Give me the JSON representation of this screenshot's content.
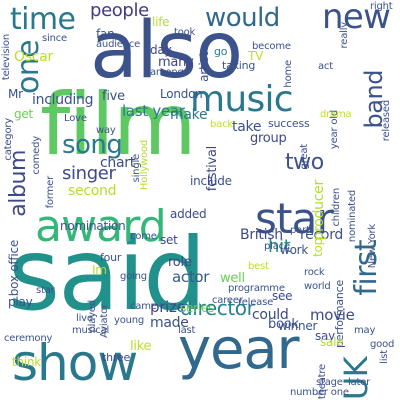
{
  "words": [
    {
      "text": "said",
      "color": "#21918c"
    },
    {
      "text": "film",
      "color": "#5ec962"
    },
    {
      "text": "also",
      "color": "#3b528b"
    },
    {
      "text": "year",
      "color": "#31688e"
    },
    {
      "text": "show",
      "color": "#2a788e"
    },
    {
      "text": "award",
      "color": "#35b779"
    },
    {
      "text": "star",
      "color": "#3b528b"
    },
    {
      "text": "music",
      "color": "#2a788e"
    },
    {
      "text": "new",
      "color": "#3b528b"
    },
    {
      "text": "time",
      "color": "#2a788e"
    },
    {
      "text": "UK",
      "color": "#2a788e"
    },
    {
      "text": "first",
      "color": "#31688e"
    },
    {
      "text": "one",
      "color": "#2a788e"
    },
    {
      "text": "would",
      "color": "#31688e"
    },
    {
      "text": "song",
      "color": "#2a788e"
    },
    {
      "text": "band",
      "color": "#3b528b"
    },
    {
      "text": "album",
      "color": "#3e4989"
    },
    {
      "text": "two",
      "color": "#3b528b"
    },
    {
      "text": "people",
      "color": "#443983"
    },
    {
      "text": "director",
      "color": "#26828e"
    },
    {
      "text": "singer",
      "color": "#3e4989"
    },
    {
      "text": "hit",
      "color": "#21918c"
    },
    {
      "text": "including",
      "color": "#3b528b"
    },
    {
      "text": "make",
      "color": "#2a788e"
    },
    {
      "text": "last year",
      "color": "#2a788e"
    },
    {
      "text": "chart",
      "color": "#3e4989"
    },
    {
      "text": "actor",
      "color": "#38588c"
    },
    {
      "text": "movie",
      "color": "#3e4989"
    },
    {
      "text": "record",
      "color": "#3b528b"
    },
    {
      "text": "British",
      "color": "#3e4989"
    },
    {
      "text": "prize",
      "color": "#3e4989"
    },
    {
      "text": "made",
      "color": "#3b528b"
    },
    {
      "text": "could",
      "color": "#3e4989"
    },
    {
      "text": "London",
      "color": "#3b528b"
    },
    {
      "text": "role",
      "color": "#3e4989"
    },
    {
      "text": "work",
      "color": "#3b528b"
    },
    {
      "text": "book",
      "color": "#3b528b"
    },
    {
      "text": "set",
      "color": "#3e4989"
    },
    {
      "text": "take",
      "color": "#3b528b"
    },
    {
      "text": "group",
      "color": "#3e4989"
    },
    {
      "text": "five",
      "color": "#3b528b"
    },
    {
      "text": "many",
      "color": "#3e4989"
    },
    {
      "text": "Oscar",
      "color": "#bddf26"
    },
    {
      "text": "second",
      "color": "#b5de2b"
    },
    {
      "text": "include",
      "color": "#3b528b"
    },
    {
      "text": "added",
      "color": "#3e4989"
    },
    {
      "text": "producer",
      "color": "#b5de2b"
    },
    {
      "text": "performance",
      "color": "#3b528b"
    },
    {
      "text": "top",
      "color": "#b5de2b"
    },
    {
      "text": "series",
      "color": "#6ece58"
    },
    {
      "text": "well",
      "color": "#6ece58"
    },
    {
      "text": "play",
      "color": "#3b528b"
    },
    {
      "text": "like",
      "color": "#bddf26"
    },
    {
      "text": "winner",
      "color": "#3b528b"
    },
    {
      "text": "three",
      "color": "#3e4989"
    },
    {
      "text": "say",
      "color": "#3e4989"
    },
    {
      "text": "think",
      "color": "#bddf26"
    },
    {
      "text": "nomination",
      "color": "#3b528b"
    },
    {
      "text": "box office",
      "color": "#3b528b"
    },
    {
      "text": "festival",
      "color": "#3e4989"
    },
    {
      "text": "four",
      "color": "#3b528b"
    },
    {
      "text": "get",
      "color": "#6ece58"
    },
    {
      "text": "life",
      "color": "#b5de2b"
    },
    {
      "text": "day",
      "color": "#3e4989"
    },
    {
      "text": "artist",
      "color": "#3b528b"
    },
    {
      "text": "see",
      "color": "#3e4989"
    },
    {
      "text": "sale",
      "color": "#b5de2b"
    },
    {
      "text": "go",
      "color": "#2a788e"
    },
    {
      "text": "TV",
      "color": "#bddf26"
    },
    {
      "text": "Mr",
      "color": "#3b528b"
    },
    {
      "text": "Im",
      "color": "#b5de2b"
    },
    {
      "text": "fan",
      "color": "#3b528b"
    },
    {
      "text": "audience",
      "color": "#3b528b"
    },
    {
      "text": "among",
      "color": "#3b528b"
    },
    {
      "text": "taking",
      "color": "#3b528b"
    },
    {
      "text": "took",
      "color": "#3b528b"
    },
    {
      "text": "become",
      "color": "#3b528b"
    },
    {
      "text": "success",
      "color": "#3b528b"
    },
    {
      "text": "home",
      "color": "#3b528b"
    },
    {
      "text": "act",
      "color": "#3b528b"
    },
    {
      "text": "year old",
      "color": "#3b528b"
    },
    {
      "text": "drama",
      "color": "#bddf26"
    },
    {
      "text": "really",
      "color": "#3b528b"
    },
    {
      "text": "released",
      "color": "#3b528b"
    },
    {
      "text": "right",
      "color": "#3b528b"
    },
    {
      "text": "great",
      "color": "#3b528b"
    },
    {
      "text": "children",
      "color": "#3b528b"
    },
    {
      "text": "nominated",
      "color": "#3b528b"
    },
    {
      "text": "part",
      "color": "#3b528b"
    },
    {
      "text": "rock",
      "color": "#3b528b"
    },
    {
      "text": "single",
      "color": "#3b528b"
    },
    {
      "text": "Hollywood",
      "color": "#b5de2b"
    },
    {
      "text": "back",
      "color": "#bddf26"
    },
    {
      "text": "Love",
      "color": "#3b528b"
    },
    {
      "text": "way",
      "color": "#3b528b"
    },
    {
      "text": "category",
      "color": "#3b528b"
    },
    {
      "text": "comedy",
      "color": "#3b528b"
    },
    {
      "text": "former",
      "color": "#3b528b"
    },
    {
      "text": "television",
      "color": "#3b528b"
    },
    {
      "text": "since",
      "color": "#3b528b"
    },
    {
      "text": "New York",
      "color": "#3b528b"
    },
    {
      "text": "place",
      "color": "#3b528b"
    },
    {
      "text": "best",
      "color": "#bddf26"
    },
    {
      "text": "come",
      "color": "#3b528b"
    },
    {
      "text": "going",
      "color": "#3b528b"
    },
    {
      "text": "programme",
      "color": "#3b528b"
    },
    {
      "text": "world",
      "color": "#3b528b"
    },
    {
      "text": "career",
      "color": "#3b528b"
    },
    {
      "text": "release",
      "color": "#3b528b"
    },
    {
      "text": "came",
      "color": "#3b528b"
    },
    {
      "text": "young",
      "color": "#3b528b"
    },
    {
      "text": "ceremony",
      "color": "#3b528b"
    },
    {
      "text": "played",
      "color": "#3b528b"
    },
    {
      "text": "Aviator",
      "color": "#3b528b"
    },
    {
      "text": "live",
      "color": "#3b528b"
    },
    {
      "text": "star",
      "color": "#3b528b"
    },
    {
      "text": "musical",
      "color": "#3b528b"
    },
    {
      "text": "last",
      "color": "#3b528b"
    },
    {
      "text": "theatre",
      "color": "#3b528b"
    },
    {
      "text": "stage",
      "color": "#3b528b"
    },
    {
      "text": "number one",
      "color": "#3b528b"
    },
    {
      "text": "later",
      "color": "#3b528b"
    },
    {
      "text": "good",
      "color": "#3b528b"
    },
    {
      "text": "list",
      "color": "#3b528b"
    },
    {
      "text": "may",
      "color": "#3b528b"
    }
  ]
}
